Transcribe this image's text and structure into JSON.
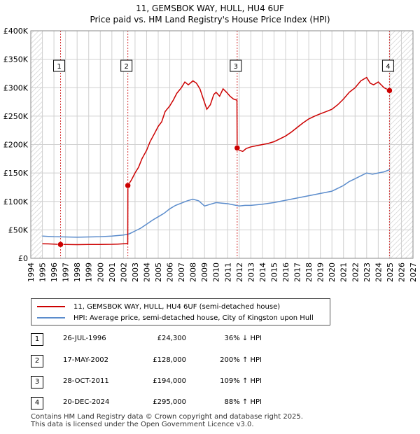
{
  "title_line1": "11, GEMSBOK WAY, HULL, HU4 6UF",
  "title_line2": "Price paid vs. HM Land Registry's House Price Index (HPI)",
  "colors": {
    "property": "#cc0000",
    "hpi": "#5b8ccc",
    "grid": "#d0d0d0",
    "marker": "#cc0000"
  },
  "chart_data": {
    "type": "line",
    "xlim": [
      1994,
      2027
    ],
    "ylim": [
      0,
      400000
    ],
    "y_ticks": [
      0,
      50000,
      100000,
      150000,
      200000,
      250000,
      300000,
      350000,
      400000
    ],
    "y_tick_labels": [
      "£0",
      "£50K",
      "£100K",
      "£150K",
      "£200K",
      "£250K",
      "£300K",
      "£350K",
      "£400K"
    ],
    "x_ticks": [
      1994,
      1995,
      1996,
      1997,
      1998,
      1999,
      2000,
      2001,
      2002,
      2003,
      2004,
      2005,
      2006,
      2007,
      2008,
      2009,
      2010,
      2011,
      2012,
      2013,
      2014,
      2015,
      2016,
      2017,
      2018,
      2019,
      2020,
      2021,
      2022,
      2023,
      2024,
      2025,
      2026,
      2027
    ],
    "x_tick_labels": [
      "1994",
      "1995",
      "1996",
      "1997",
      "1998",
      "1999",
      "2000",
      "2001",
      "2002",
      "2003",
      "2004",
      "2005",
      "2006",
      "2007",
      "2008",
      "2009",
      "2010",
      "2011",
      "2012",
      "2013",
      "2014",
      "2015",
      "2016",
      "2017",
      "2018",
      "2019",
      "2020",
      "2021",
      "2022",
      "2023",
      "2024",
      "2025",
      "2026",
      "2027"
    ],
    "hatched_regions": [
      [
        1994,
        1995
      ],
      [
        2025,
        2027
      ]
    ],
    "series": [
      {
        "name": "11, GEMSBOK WAY, HULL, HU4 6UF (semi-detached house)",
        "points": [
          [
            1995.0,
            25500
          ],
          [
            1995.5,
            25300
          ],
          [
            1996.0,
            25000
          ],
          [
            1996.57,
            24300
          ],
          [
            1997.0,
            24200
          ],
          [
            1997.5,
            24100
          ],
          [
            1998.0,
            24000
          ],
          [
            1998.5,
            24100
          ],
          [
            1999.0,
            24200
          ],
          [
            1999.5,
            24300
          ],
          [
            2000.0,
            24300
          ],
          [
            2000.5,
            24500
          ],
          [
            2001.0,
            24600
          ],
          [
            2001.5,
            25000
          ],
          [
            2002.0,
            25500
          ],
          [
            2002.37,
            26000
          ],
          [
            2002.38,
            128000
          ],
          [
            2002.7,
            138000
          ],
          [
            2003.0,
            150000
          ],
          [
            2003.3,
            160000
          ],
          [
            2003.6,
            175000
          ],
          [
            2004.0,
            190000
          ],
          [
            2004.3,
            205000
          ],
          [
            2004.7,
            220000
          ],
          [
            2005.0,
            232000
          ],
          [
            2005.3,
            240000
          ],
          [
            2005.6,
            258000
          ],
          [
            2006.0,
            268000
          ],
          [
            2006.3,
            278000
          ],
          [
            2006.6,
            290000
          ],
          [
            2007.0,
            300000
          ],
          [
            2007.3,
            310000
          ],
          [
            2007.6,
            305000
          ],
          [
            2008.0,
            312000
          ],
          [
            2008.3,
            308000
          ],
          [
            2008.6,
            298000
          ],
          [
            2008.9,
            280000
          ],
          [
            2009.2,
            262000
          ],
          [
            2009.5,
            270000
          ],
          [
            2009.8,
            288000
          ],
          [
            2010.0,
            292000
          ],
          [
            2010.3,
            285000
          ],
          [
            2010.6,
            298000
          ],
          [
            2010.9,
            292000
          ],
          [
            2011.2,
            285000
          ],
          [
            2011.5,
            280000
          ],
          [
            2011.8,
            278000
          ],
          [
            2011.82,
            194000
          ],
          [
            2012.0,
            190000
          ],
          [
            2012.3,
            188000
          ],
          [
            2012.6,
            193000
          ],
          [
            2013.0,
            196000
          ],
          [
            2013.5,
            198000
          ],
          [
            2014.0,
            200000
          ],
          [
            2014.5,
            202000
          ],
          [
            2015.0,
            205000
          ],
          [
            2015.5,
            210000
          ],
          [
            2016.0,
            215000
          ],
          [
            2016.5,
            222000
          ],
          [
            2017.0,
            230000
          ],
          [
            2017.5,
            238000
          ],
          [
            2018.0,
            245000
          ],
          [
            2018.5,
            250000
          ],
          [
            2019.0,
            254000
          ],
          [
            2019.5,
            258000
          ],
          [
            2020.0,
            262000
          ],
          [
            2020.5,
            270000
          ],
          [
            2021.0,
            280000
          ],
          [
            2021.5,
            292000
          ],
          [
            2022.0,
            300000
          ],
          [
            2022.5,
            312000
          ],
          [
            2023.0,
            318000
          ],
          [
            2023.3,
            308000
          ],
          [
            2023.6,
            305000
          ],
          [
            2024.0,
            310000
          ],
          [
            2024.5,
            300000
          ],
          [
            2024.97,
            295000
          ]
        ]
      },
      {
        "name": "HPI: Average price, semi-detached house, City of Kingston upon Hull",
        "points": [
          [
            1995.0,
            39000
          ],
          [
            1995.5,
            38500
          ],
          [
            1996.0,
            38000
          ],
          [
            1997.0,
            37500
          ],
          [
            1998.0,
            37000
          ],
          [
            1999.0,
            37500
          ],
          [
            2000.0,
            38000
          ],
          [
            2001.0,
            39000
          ],
          [
            2002.0,
            41000
          ],
          [
            2002.5,
            43000
          ],
          [
            2003.0,
            48000
          ],
          [
            2003.5,
            53000
          ],
          [
            2004.0,
            60000
          ],
          [
            2004.5,
            67000
          ],
          [
            2005.0,
            73000
          ],
          [
            2005.5,
            79000
          ],
          [
            2006.0,
            87000
          ],
          [
            2006.5,
            93000
          ],
          [
            2007.0,
            97000
          ],
          [
            2007.5,
            101000
          ],
          [
            2008.0,
            104000
          ],
          [
            2008.5,
            101000
          ],
          [
            2009.0,
            92000
          ],
          [
            2009.5,
            95000
          ],
          [
            2010.0,
            98000
          ],
          [
            2010.5,
            97000
          ],
          [
            2011.0,
            96000
          ],
          [
            2011.5,
            94000
          ],
          [
            2012.0,
            92000
          ],
          [
            2012.5,
            93000
          ],
          [
            2013.0,
            93000
          ],
          [
            2014.0,
            95000
          ],
          [
            2015.0,
            98000
          ],
          [
            2016.0,
            102000
          ],
          [
            2017.0,
            106000
          ],
          [
            2018.0,
            110000
          ],
          [
            2019.0,
            114000
          ],
          [
            2020.0,
            118000
          ],
          [
            2020.5,
            123000
          ],
          [
            2021.0,
            128000
          ],
          [
            2021.5,
            135000
          ],
          [
            2022.0,
            140000
          ],
          [
            2022.5,
            145000
          ],
          [
            2023.0,
            150000
          ],
          [
            2023.5,
            148000
          ],
          [
            2024.0,
            150000
          ],
          [
            2024.5,
            152000
          ],
          [
            2025.0,
            156000
          ]
        ]
      }
    ],
    "transactions": [
      {
        "num": "1",
        "year": 1996.57,
        "price": 24300
      },
      {
        "num": "2",
        "year": 2002.38,
        "price": 128000
      },
      {
        "num": "3",
        "year": 2011.82,
        "price": 194000
      },
      {
        "num": "4",
        "year": 2024.97,
        "price": 295000
      }
    ]
  },
  "legend": {
    "property_label": "11, GEMSBOK WAY, HULL, HU4 6UF (semi-detached house)",
    "hpi_label": "HPI: Average price, semi-detached house, City of Kingston upon Hull"
  },
  "transactions_table": [
    {
      "num": "1",
      "date": "26-JUL-1996",
      "price": "£24,300",
      "hpi": "36% ↓ HPI"
    },
    {
      "num": "2",
      "date": "17-MAY-2002",
      "price": "£128,000",
      "hpi": "200% ↑ HPI"
    },
    {
      "num": "3",
      "date": "28-OCT-2011",
      "price": "£194,000",
      "hpi": "109% ↑ HPI"
    },
    {
      "num": "4",
      "date": "20-DEC-2024",
      "price": "£295,000",
      "hpi": "88% ↑ HPI"
    }
  ],
  "footer_line1": "Contains HM Land Registry data © Crown copyright and database right 2025.",
  "footer_line2": "This data is licensed under the Open Government Licence v3.0."
}
